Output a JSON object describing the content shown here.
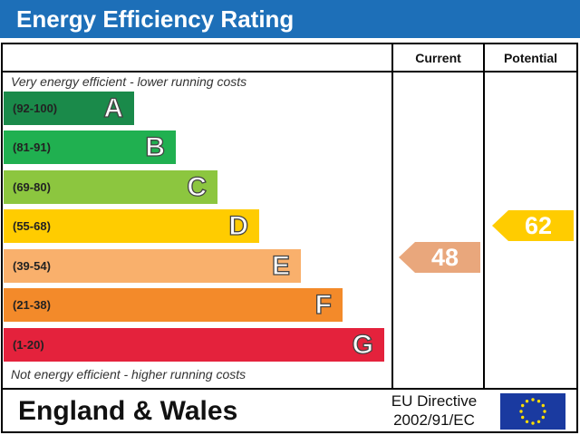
{
  "title": "Energy Efficiency Rating",
  "columns": {
    "current": "Current",
    "potential": "Potential"
  },
  "notes": {
    "top": "Very energy efficient - lower running costs",
    "bottom": "Not energy efficient - higher running costs"
  },
  "footer": {
    "region": "England & Wales",
    "directive_line1": "EU Directive",
    "directive_line2": "2002/91/EC",
    "flag_icon": "eu-flag-icon"
  },
  "chart_data": {
    "type": "bar",
    "title": "Energy Efficiency Rating",
    "bands": [
      {
        "letter": "A",
        "range": "(92-100)",
        "color": "#1a8a4a"
      },
      {
        "letter": "B",
        "range": "(81-91)",
        "color": "#20b050"
      },
      {
        "letter": "C",
        "range": "(69-80)",
        "color": "#8cc63f"
      },
      {
        "letter": "D",
        "range": "(55-68)",
        "color": "#ffcc00"
      },
      {
        "letter": "E",
        "range": "(39-54)",
        "color": "#f9b06c"
      },
      {
        "letter": "F",
        "range": "(21-38)",
        "color": "#f38a2a"
      },
      {
        "letter": "G",
        "range": "(1-20)",
        "color": "#e4223c"
      }
    ],
    "current": {
      "value": 48,
      "band": "E",
      "color": "#e9a77c"
    },
    "potential": {
      "value": 62,
      "band": "D",
      "color": "#ffcc00"
    }
  }
}
